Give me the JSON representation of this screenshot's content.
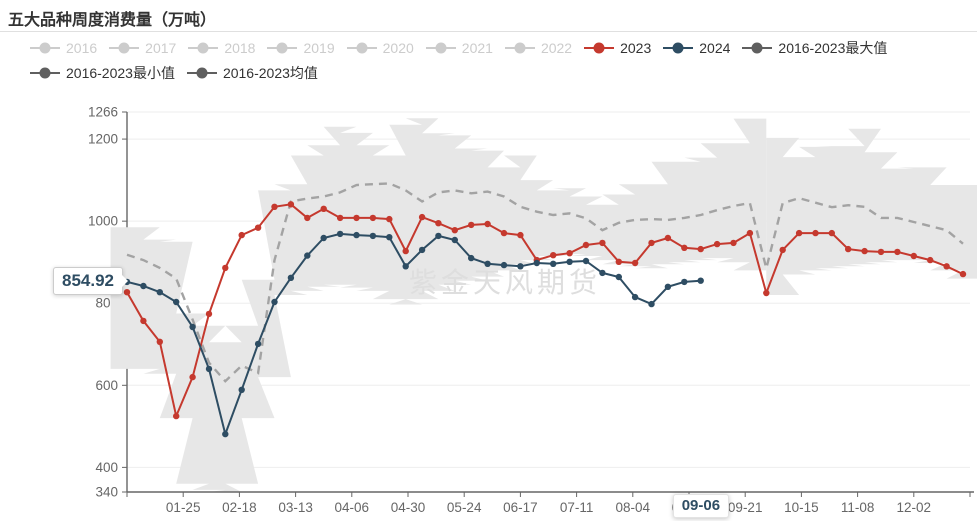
{
  "title": "五大品种周度消费量（万吨）",
  "watermark": "紫金天风期货",
  "colors": {
    "red_2023": "#c5392e",
    "navy_2024": "#2e4d63",
    "stat_gray": "#5f5f5f",
    "disabled_legend": "#cccccc",
    "band_fill": "#e7e7e7",
    "mean_dash": "#a3a3a3",
    "grid_line": "#eeeeee",
    "axis_line": "#666666",
    "axis_label": "#666666",
    "watermark_color": "#dedede",
    "title_color": "#333333"
  },
  "legend": {
    "rows": [
      [
        {
          "label": "2016",
          "color": "#cccccc",
          "enabled": false
        },
        {
          "label": "2017",
          "color": "#cccccc",
          "enabled": false
        },
        {
          "label": "2018",
          "color": "#cccccc",
          "enabled": false
        },
        {
          "label": "2019",
          "color": "#cccccc",
          "enabled": false
        },
        {
          "label": "2020",
          "color": "#cccccc",
          "enabled": false
        },
        {
          "label": "2021",
          "color": "#cccccc",
          "enabled": false
        },
        {
          "label": "2022",
          "color": "#cccccc",
          "enabled": false
        },
        {
          "label": "2023",
          "color": "#c5392e",
          "enabled": true
        },
        {
          "label": "2024",
          "color": "#2e4d63",
          "enabled": true
        },
        {
          "label": "2016-2023最大值",
          "color": "#5f5f5f",
          "enabled": true
        }
      ],
      [
        {
          "label": "2016-2023最小值",
          "color": "#5f5f5f",
          "enabled": true
        },
        {
          "label": "2016-2023均值",
          "color": "#5f5f5f",
          "enabled": true
        }
      ]
    ]
  },
  "axis_pointer": {
    "y_label": "854.92",
    "y_value": 854.92,
    "x_label": "09-06",
    "x_day": 246
  },
  "chart_data": {
    "type": "line",
    "title": "五大品种周度消费量（万吨）",
    "xlabel": "",
    "ylabel": "",
    "legend_position": "top",
    "grid": true,
    "y_axis": {
      "min": 340,
      "max": 1266,
      "ticks": [
        340,
        400,
        600,
        800,
        1000,
        1200,
        1266
      ]
    },
    "x_axis": {
      "start_day": 1,
      "end_day": 361,
      "tick_step_days": 24,
      "tick_labels": [
        "",
        "01-25",
        "02-18",
        "03-13",
        "04-06",
        "04-30",
        "05-24",
        "06-17",
        "07-11",
        "08-04",
        "08-28",
        "09-21",
        "10-15",
        "11-08",
        "12-02",
        ""
      ]
    },
    "series": [
      {
        "name": "2016-2023最大值",
        "role": "band-top",
        "color": "#e7e7e7",
        "start_day": 1,
        "step_days": 7,
        "values": [
          985,
          985,
          955,
          950,
          775,
          745,
          705,
          745,
          857,
          1075,
          1090,
          1160,
          1185,
          1230,
          1215,
          1185,
          1160,
          1235,
          1251,
          1214,
          1209,
          1177,
          1172,
          1131,
          1160,
          1100,
          1075,
          1080,
          1060,
          1040,
          1065,
          1090,
          1090,
          1145,
          1145,
          1155,
          1190,
          1190,
          1250,
          null,
          1203,
          1156,
          1181,
          1183,
          1183,
          1225,
          1168,
          1128,
          1131,
          1131,
          1088,
          1088
        ]
      },
      {
        "name": "2016-2023最小值",
        "role": "band-bottom",
        "color": "#e7e7e7",
        "start_day": 1,
        "step_days": 7,
        "values": [
          640,
          640,
          628,
          520,
          360,
          345,
          340,
          360,
          520,
          620,
          820,
          830,
          840,
          845,
          838,
          830,
          810,
          797,
          810,
          830,
          845,
          855,
          865,
          880,
          895,
          905,
          915,
          920,
          915,
          905,
          895,
          890,
          885,
          895,
          900,
          905,
          910,
          900,
          880,
          null,
          820,
          870,
          880,
          885,
          890,
          895,
          900,
          905,
          905,
          898,
          880,
          860
        ]
      },
      {
        "name": "2016-2023均值",
        "role": "mean",
        "color": "#a3a3a3",
        "style": "dashed",
        "start_day": 1,
        "step_days": 7,
        "values": [
          918,
          905,
          886,
          860,
          760,
          655,
          610,
          648,
          630,
          905,
          1048,
          1055,
          1060,
          1070,
          1088,
          1090,
          1092,
          1075,
          1048,
          1070,
          1075,
          1068,
          1072,
          1060,
          1035,
          1023,
          1015,
          1019,
          1007,
          978,
          996,
          1003,
          1005,
          1003,
          1008,
          1015,
          1027,
          1037,
          1044,
          885,
          1044,
          1056,
          1045,
          1034,
          1039,
          1035,
          1008,
          1008,
          998,
          988,
          978,
          945
        ]
      },
      {
        "name": "2023",
        "role": "line",
        "color": "#c5392e",
        "markers": true,
        "start_day": 1,
        "step_days": 7,
        "values": [
          827,
          757,
          706,
          525,
          620,
          774,
          886,
          966,
          984,
          1035,
          1041,
          1008,
          1030,
          1008,
          1008,
          1008,
          1005,
          927,
          1010,
          995,
          978,
          991,
          993,
          971,
          966,
          905,
          917,
          922,
          942,
          947,
          901,
          898,
          947,
          959,
          935,
          932,
          944,
          947,
          971,
          825,
          930,
          971,
          971,
          971,
          932,
          927,
          925,
          925,
          915,
          905,
          890,
          871
        ]
      },
      {
        "name": "2024",
        "role": "line",
        "color": "#2e4d63",
        "markers": true,
        "start_day": 1,
        "step_days": 7,
        "values": [
          852,
          842,
          827,
          803,
          742,
          640,
          481,
          589,
          701,
          803,
          862,
          916,
          959,
          969,
          966,
          964,
          961,
          890,
          930,
          964,
          954,
          910,
          896,
          893,
          890,
          898,
          896,
          901,
          903,
          874,
          864,
          815,
          798,
          840,
          852,
          854.92
        ]
      }
    ]
  }
}
